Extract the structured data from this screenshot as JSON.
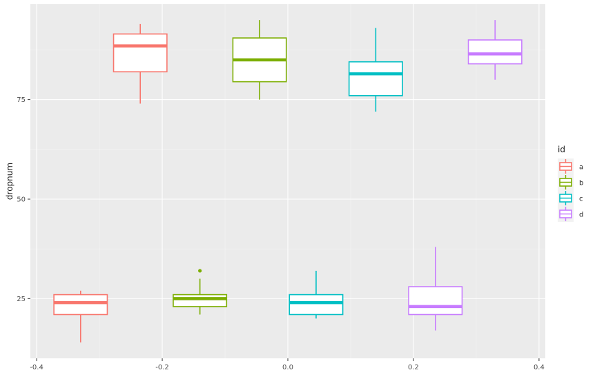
{
  "chart_data": {
    "type": "boxplot",
    "title": "",
    "xlabel": "",
    "ylabel": "dropnum",
    "xlim": [
      -0.41,
      0.41
    ],
    "ylim": [
      10,
      99
    ],
    "x_ticks": [
      -0.4,
      -0.2,
      0.0,
      0.2,
      0.4
    ],
    "x_tick_labels": [
      "-0.4",
      "-0.2",
      "0.0",
      "0.2",
      "0.4"
    ],
    "y_ticks": [
      25,
      50,
      75
    ],
    "y_tick_labels": [
      "25",
      "50",
      "75"
    ],
    "x_minor_ticks": [
      -0.3,
      -0.1,
      0.1,
      0.3
    ],
    "y_minor_ticks": [
      37.5,
      62.5,
      87.5
    ],
    "legend": {
      "title": "id",
      "position": "right",
      "items": [
        {
          "label": "a",
          "color": "#F8766D"
        },
        {
          "label": "b",
          "color": "#7CAE00"
        },
        {
          "label": "c",
          "color": "#00BFC4"
        },
        {
          "label": "d",
          "color": "#C77CFF"
        }
      ]
    },
    "boxes": [
      {
        "id": "a",
        "x": -0.33,
        "width": 0.085,
        "min": 14,
        "q1": 21,
        "median": 24,
        "q3": 26,
        "max": 27,
        "outliers": []
      },
      {
        "id": "a",
        "x": -0.235,
        "width": 0.085,
        "min": 74,
        "q1": 82,
        "median": 88.5,
        "q3": 91.5,
        "max": 94,
        "outliers": []
      },
      {
        "id": "b",
        "x": -0.14,
        "width": 0.085,
        "min": 21,
        "q1": 23,
        "median": 25,
        "q3": 26,
        "max": 30,
        "outliers": [
          32
        ]
      },
      {
        "id": "b",
        "x": -0.045,
        "width": 0.085,
        "min": 75,
        "q1": 79.5,
        "median": 85,
        "q3": 90.5,
        "max": 95,
        "outliers": []
      },
      {
        "id": "c",
        "x": 0.045,
        "width": 0.085,
        "min": 20,
        "q1": 21,
        "median": 24,
        "q3": 26,
        "max": 32,
        "outliers": []
      },
      {
        "id": "c",
        "x": 0.14,
        "width": 0.085,
        "min": 72,
        "q1": 76,
        "median": 81.5,
        "q3": 84.5,
        "max": 93,
        "outliers": []
      },
      {
        "id": "d",
        "x": 0.235,
        "width": 0.085,
        "min": 17,
        "q1": 21,
        "median": 23,
        "q3": 28,
        "max": 38,
        "outliers": []
      },
      {
        "id": "d",
        "x": 0.33,
        "width": 0.085,
        "min": 80,
        "q1": 84,
        "median": 86.5,
        "q3": 90,
        "max": 95,
        "outliers": []
      }
    ]
  }
}
